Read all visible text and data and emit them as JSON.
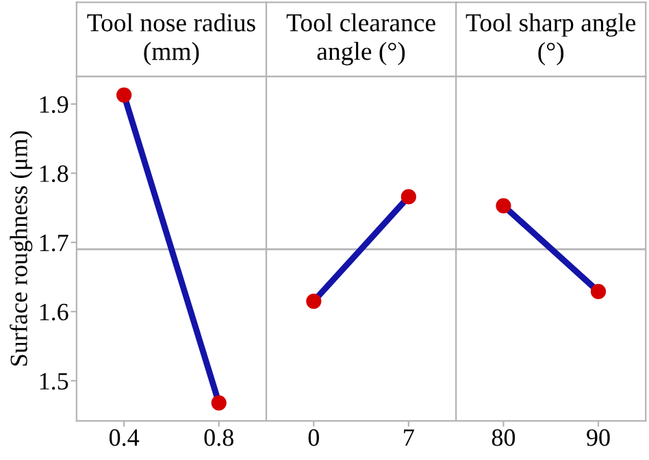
{
  "chart_data": [
    {
      "type": "line",
      "title": "Tool nose radius\n(mm)",
      "ylabel": "Surface roughness (μm)",
      "categories": [
        "0.4",
        "0.8"
      ],
      "series": [
        {
          "color": "#1414a8",
          "colors": [
            "#d40000",
            "#d40000"
          ],
          "values": [
            1.913,
            1.468
          ]
        }
      ],
      "marker": "circle",
      "ylim": [
        1.442,
        1.94
      ],
      "yticks": [
        1.5,
        1.6,
        1.7,
        1.8,
        1.9
      ],
      "ref_lines": [
        {
          "axis": "y",
          "value": 1.69,
          "color": "#b4b4b4"
        }
      ]
    },
    {
      "type": "line",
      "title": "Tool clearance\nangle (°)",
      "categories": [
        "0",
        "7"
      ],
      "series": [
        {
          "color": "#1414a8",
          "colors": [
            "#d40000",
            "#d40000"
          ],
          "values": [
            1.615,
            1.766
          ]
        }
      ],
      "marker": "circle",
      "ylim": [
        1.442,
        1.94
      ],
      "yticks": [
        1.5,
        1.6,
        1.7,
        1.8,
        1.9
      ],
      "tick_labels": "x",
      "ref_lines": [
        {
          "axis": "y",
          "value": 1.69,
          "color": "#b4b4b4"
        }
      ]
    },
    {
      "type": "line",
      "title": "Tool sharp angle\n(°)",
      "categories": [
        "80",
        "90"
      ],
      "series": [
        {
          "color": "#1414a8",
          "colors": [
            "#d40000",
            "#d40000"
          ],
          "values": [
            1.753,
            1.629
          ]
        }
      ],
      "marker": "circle",
      "ylim": [
        1.442,
        1.94
      ],
      "yticks": [
        1.5,
        1.6,
        1.7,
        1.8,
        1.9
      ],
      "tick_labels": "x",
      "ref_lines": [
        {
          "axis": "y",
          "value": 1.69,
          "color": "#b4b4b4"
        }
      ]
    }
  ]
}
